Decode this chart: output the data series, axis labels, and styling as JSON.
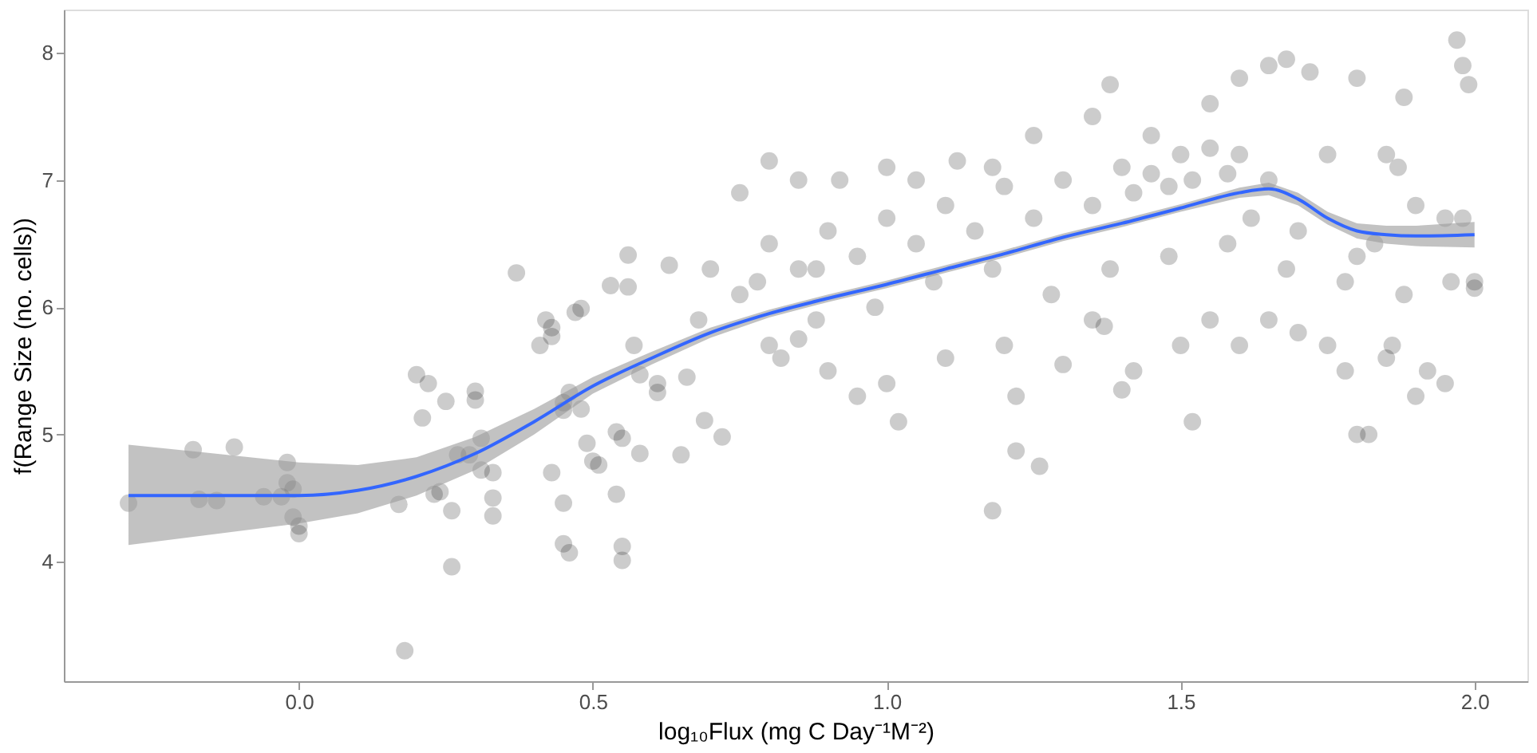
{
  "chart_data": {
    "type": "scatter",
    "xlabel": "log₁₀Flux (mg C Day⁻¹M⁻²)",
    "ylabel": "f(Range Size (no. cells))",
    "xlim": [
      -0.4,
      2.09
    ],
    "ylim": [
      3.06,
      8.34
    ],
    "xticks": [
      {
        "value": 0,
        "label": "0.0"
      },
      0.5,
      {
        "value": 1,
        "label": "1.0"
      },
      1.5,
      {
        "value": 2,
        "label": "2.0"
      }
    ],
    "yticks": [
      4,
      5,
      6,
      7,
      8
    ],
    "grid": false,
    "series": [
      {
        "color": "#000000",
        "marker": "circle",
        "x": [
          -0.29,
          -0.18,
          -0.11,
          -0.17,
          -0.14,
          -0.06,
          -0.03,
          -0.02,
          -0.02,
          -0.01,
          -0.01,
          0.0,
          0.0,
          0.17,
          0.18,
          0.2,
          0.22,
          0.21,
          0.25,
          0.23,
          0.24,
          0.26,
          0.26,
          0.27,
          0.29,
          0.3,
          0.3,
          0.31,
          0.31,
          0.33,
          0.33,
          0.33,
          0.37,
          0.42,
          0.43,
          0.41,
          0.43,
          0.43,
          0.45,
          0.46,
          0.45,
          0.45,
          0.45,
          0.46,
          0.48,
          0.47,
          0.48,
          0.49,
          0.5,
          0.51,
          0.53,
          0.54,
          0.54,
          0.55,
          0.55,
          0.55,
          0.56,
          0.56,
          0.57,
          0.58,
          0.58,
          0.61,
          0.61,
          0.63,
          0.65,
          0.66,
          0.69,
          0.72,
          0.75,
          0.8,
          0.85,
          0.92,
          1.0,
          1.05,
          1.12,
          1.18,
          1.25,
          1.35,
          1.38,
          1.45,
          1.55,
          1.6,
          1.65,
          1.68,
          1.72,
          1.8,
          1.88,
          1.97,
          1.98,
          1.99,
          0.7,
          0.8,
          0.9,
          1.0,
          1.1,
          1.2,
          1.3,
          1.4,
          1.45,
          1.5,
          1.55,
          1.6,
          1.65,
          1.75,
          1.85,
          1.87,
          1.9,
          1.95,
          0.75,
          0.85,
          0.95,
          1.05,
          1.15,
          1.25,
          1.35,
          1.42,
          1.48,
          1.52,
          1.58,
          1.62,
          1.7,
          1.8,
          1.83,
          0.8,
          0.82,
          0.85,
          0.88,
          0.9,
          0.95,
          1.0,
          1.02,
          1.1,
          1.2,
          1.22,
          1.22,
          1.26,
          1.18,
          1.3,
          1.35,
          1.37,
          1.4,
          1.42,
          1.5,
          1.52,
          1.55,
          1.6,
          1.65,
          1.7,
          1.75,
          1.78,
          1.8,
          1.82,
          1.85,
          1.86,
          1.9,
          1.92,
          1.95,
          2.0,
          1.98,
          2.0,
          0.68,
          0.78,
          0.88,
          0.98,
          1.08,
          1.18,
          1.28,
          1.38,
          1.48,
          1.58,
          1.68,
          1.78,
          1.88,
          1.96
        ],
        "values": [
          4.46,
          4.88,
          4.9,
          4.49,
          4.48,
          4.51,
          4.51,
          4.78,
          4.62,
          4.57,
          4.35,
          4.28,
          4.22,
          4.45,
          3.3,
          5.47,
          5.4,
          5.13,
          5.26,
          4.53,
          4.55,
          4.4,
          3.96,
          4.84,
          4.84,
          5.34,
          5.27,
          4.97,
          4.72,
          4.7,
          4.5,
          4.36,
          6.27,
          5.9,
          5.84,
          5.7,
          5.77,
          4.7,
          5.25,
          5.33,
          5.19,
          4.46,
          4.14,
          4.07,
          5.2,
          5.96,
          5.99,
          4.93,
          4.79,
          4.76,
          6.17,
          5.02,
          4.53,
          4.97,
          4.12,
          4.01,
          6.41,
          6.16,
          5.7,
          4.85,
          5.47,
          5.4,
          5.33,
          6.33,
          4.84,
          5.45,
          5.11,
          4.98,
          6.9,
          7.15,
          7.0,
          7.0,
          7.1,
          7.0,
          7.15,
          7.1,
          7.35,
          7.5,
          7.75,
          7.35,
          7.6,
          7.8,
          7.9,
          7.95,
          7.85,
          7.8,
          7.65,
          8.1,
          7.9,
          7.75,
          6.3,
          6.5,
          6.6,
          6.7,
          6.8,
          6.95,
          7.0,
          7.1,
          7.05,
          7.2,
          7.25,
          7.2,
          7.0,
          7.2,
          7.2,
          7.1,
          6.8,
          6.7,
          6.1,
          6.3,
          6.4,
          6.5,
          6.6,
          6.7,
          6.8,
          6.9,
          6.95,
          7.0,
          7.05,
          6.7,
          6.6,
          6.4,
          6.5,
          5.7,
          5.6,
          5.75,
          5.9,
          5.5,
          5.3,
          5.4,
          5.1,
          5.6,
          5.7,
          5.3,
          4.87,
          4.75,
          4.4,
          5.55,
          5.9,
          5.85,
          5.35,
          5.5,
          5.7,
          5.1,
          5.9,
          5.7,
          5.9,
          5.8,
          5.7,
          5.5,
          5.0,
          5.0,
          5.6,
          5.7,
          5.3,
          5.5,
          5.4,
          6.15,
          6.7,
          6.2,
          5.9,
          6.2,
          6.3,
          6.0,
          6.2,
          6.3,
          6.1,
          6.3,
          6.4,
          6.5,
          6.3,
          6.2,
          6.1,
          6.2
        ]
      },
      {
        "type": "line",
        "color": "#3366ff",
        "x": [
          -0.29,
          0.0,
          0.1,
          0.2,
          0.3,
          0.4,
          0.5,
          0.6,
          0.7,
          0.8,
          0.9,
          1.0,
          1.1,
          1.2,
          1.3,
          1.4,
          1.5,
          1.6,
          1.65,
          1.7,
          1.75,
          1.8,
          1.85,
          1.9,
          2.0
        ],
        "values": [
          4.52,
          4.52,
          4.56,
          4.67,
          4.85,
          5.1,
          5.38,
          5.6,
          5.8,
          5.95,
          6.07,
          6.18,
          6.3,
          6.42,
          6.55,
          6.66,
          6.78,
          6.9,
          6.93,
          6.85,
          6.7,
          6.6,
          6.57,
          6.56,
          6.57
        ],
        "lower": [
          4.13,
          4.3,
          4.38,
          4.52,
          4.72,
          5.0,
          5.32,
          5.55,
          5.76,
          5.92,
          6.04,
          6.15,
          6.27,
          6.39,
          6.52,
          6.63,
          6.75,
          6.86,
          6.88,
          6.8,
          6.65,
          6.54,
          6.5,
          6.48,
          6.47
        ],
        "upper": [
          4.92,
          4.78,
          4.76,
          4.82,
          4.98,
          5.2,
          5.45,
          5.65,
          5.84,
          5.98,
          6.1,
          6.21,
          6.33,
          6.45,
          6.58,
          6.69,
          6.81,
          6.94,
          6.98,
          6.9,
          6.75,
          6.66,
          6.64,
          6.64,
          6.67
        ]
      }
    ]
  }
}
